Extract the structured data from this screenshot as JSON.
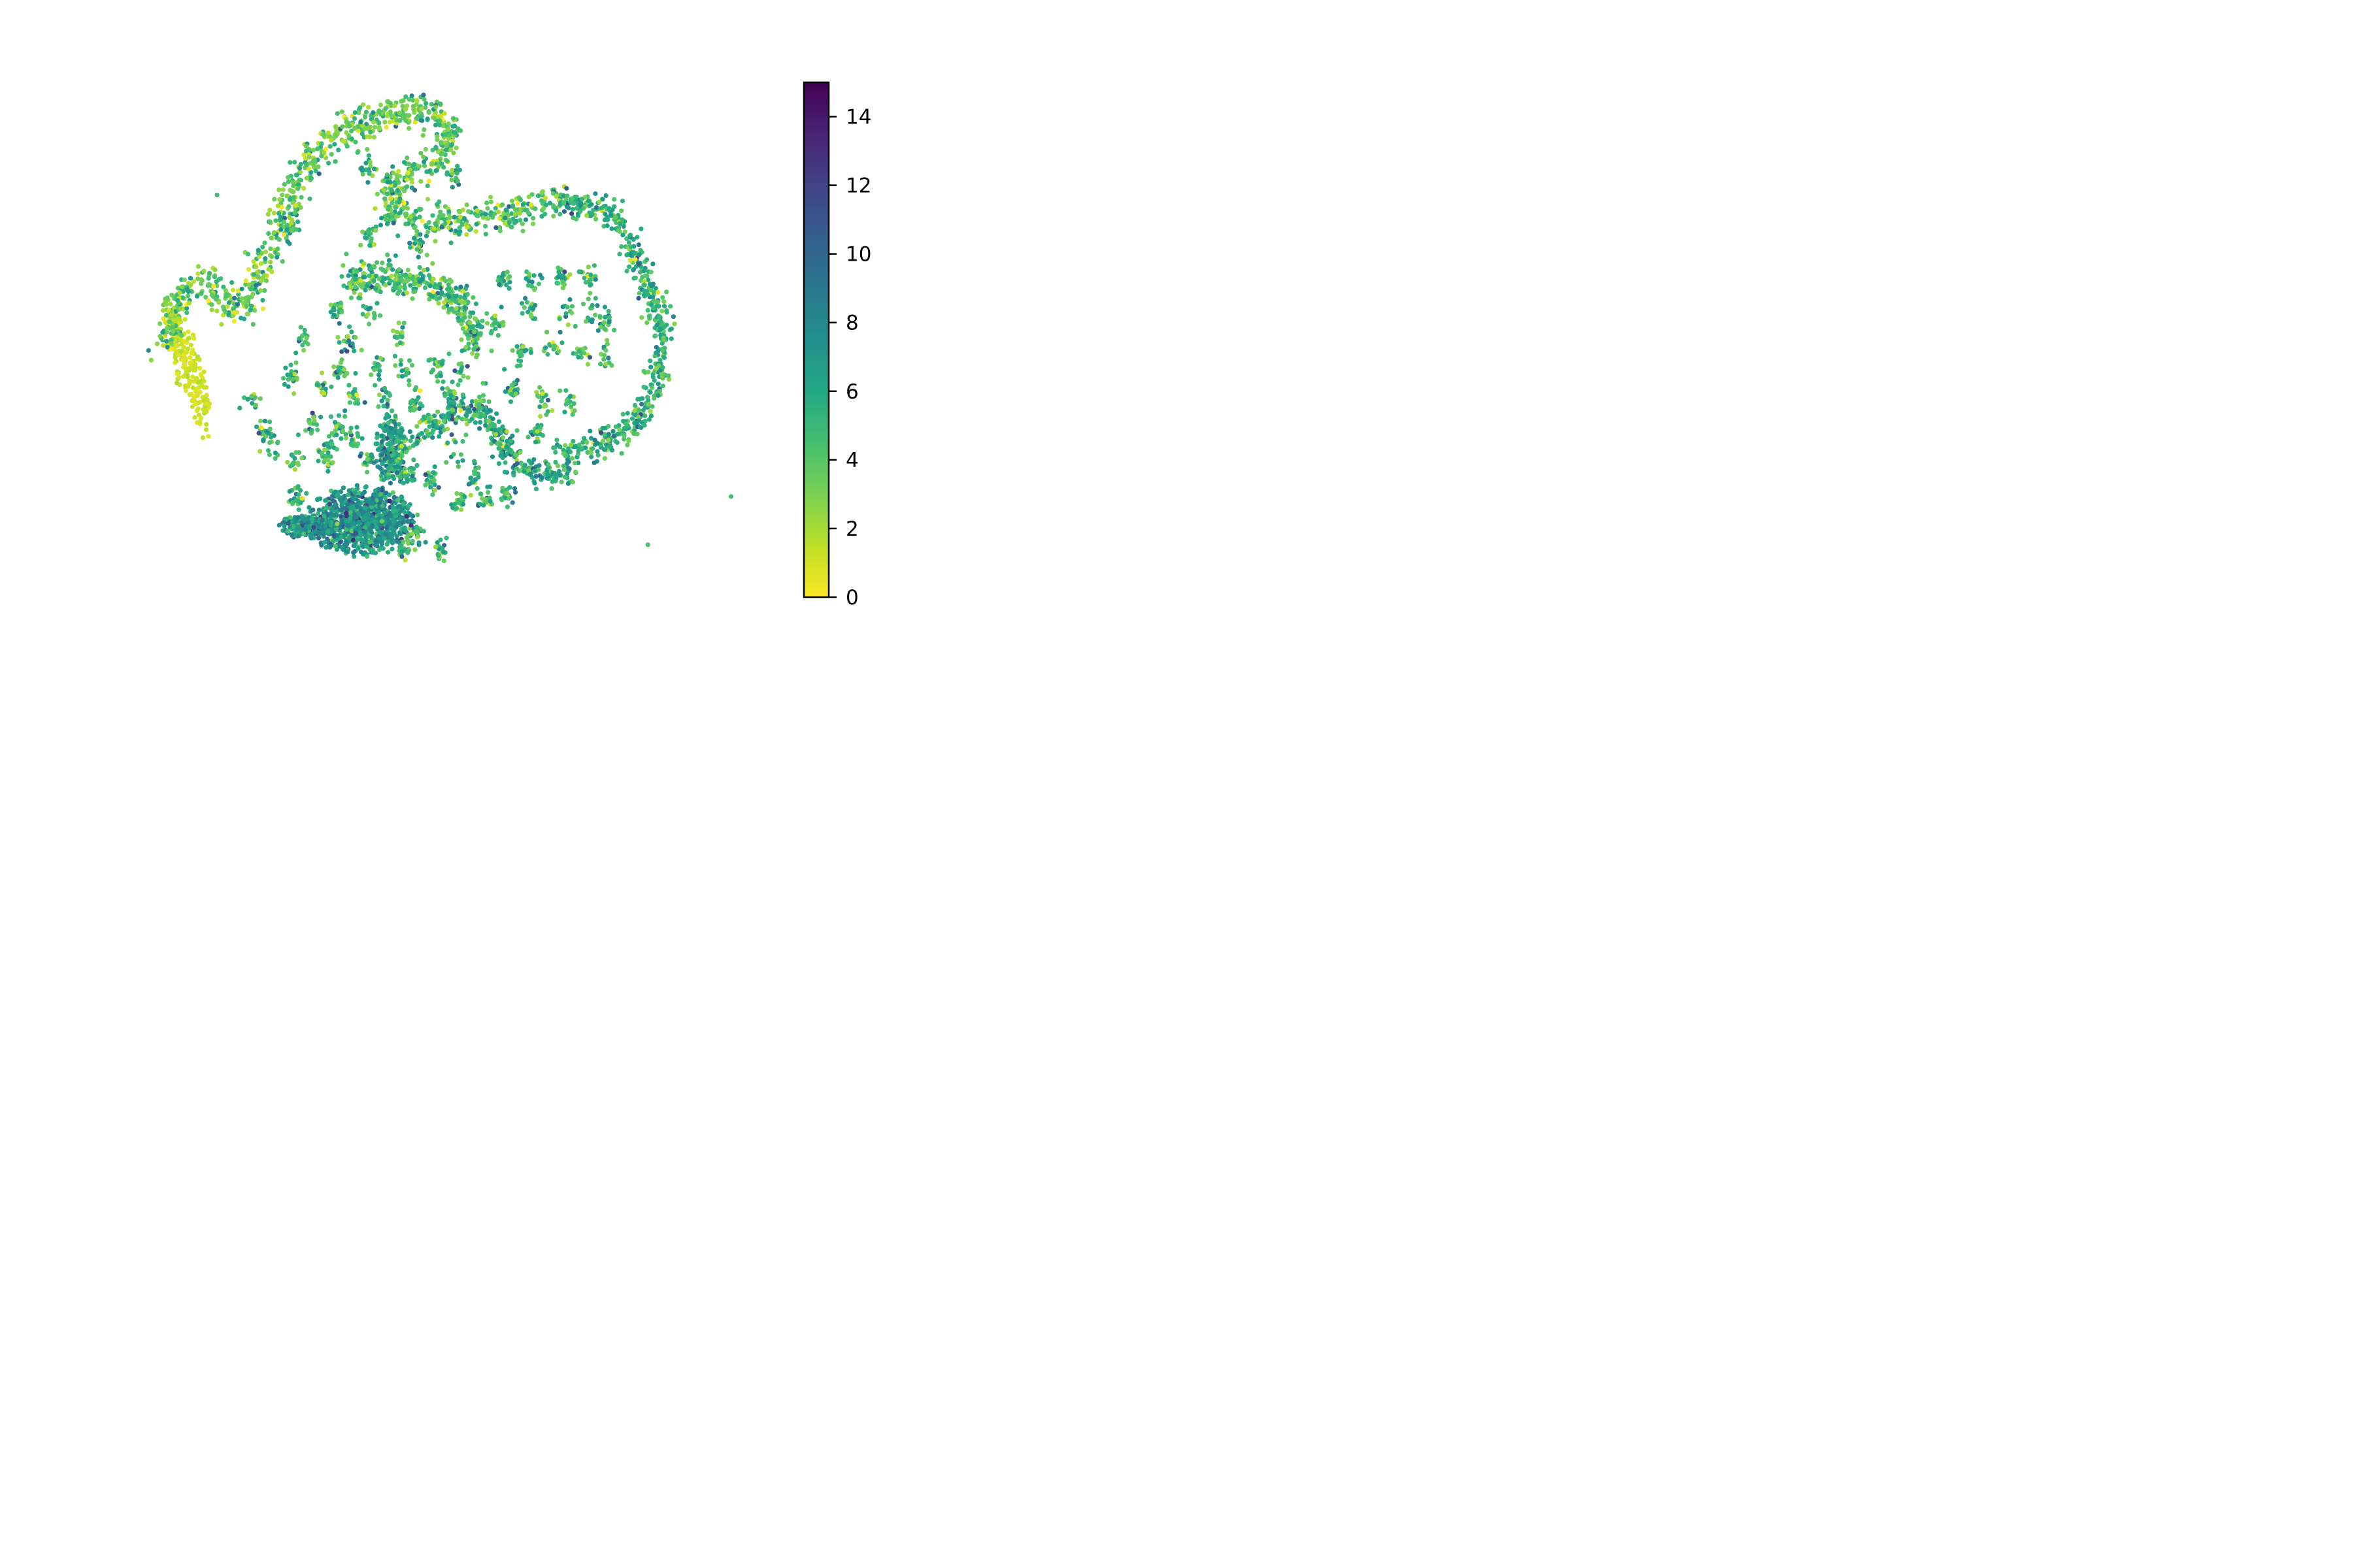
{
  "chart_data": {
    "type": "scatter",
    "title": "",
    "xlabel": "",
    "ylabel": "",
    "axes_visible": false,
    "grid": false,
    "legend": "none",
    "colormap": "viridis_r",
    "colorbar": {
      "min": 0,
      "max": 15,
      "ticks": [
        "0",
        "2",
        "4",
        "6",
        "8",
        "10",
        "12",
        "14"
      ],
      "placement": "right",
      "colors_low_to_high": [
        "#fde725",
        "#7ad151",
        "#22a884",
        "#2a788e",
        "#414487",
        "#440154"
      ]
    },
    "point_value_distribution": "mostly 2-8; left tail region near 0-1; dense lower region near 6-8; sparse highs up to ~11",
    "approx_point_count": 4000,
    "clusters": [
      {
        "name": "left-tail",
        "type": "blob",
        "cx": -14.2,
        "cy": 3.0,
        "rx": 1.0,
        "ry": 4.0,
        "n": 220,
        "v": 1.0
      },
      {
        "name": "left-hook",
        "type": "path",
        "path": [
          [
            -15.5,
            3.6
          ],
          [
            -14.5,
            6.2
          ],
          [
            -12.8,
            6.8
          ],
          [
            -11.2,
            5.3
          ],
          [
            -10.0,
            6.1
          ],
          [
            -8.5,
            9.3
          ],
          [
            -7.0,
            12.2
          ],
          [
            -5.0,
            14.2
          ],
          [
            -2.0,
            15.0
          ],
          [
            0.0,
            15.4
          ],
          [
            1.5,
            15.2
          ]
        ],
        "n": 650,
        "w": 0.6,
        "v": 3.5
      },
      {
        "name": "upper-curl",
        "type": "path",
        "path": [
          [
            1.5,
            15.2
          ],
          [
            2.5,
            14.3
          ],
          [
            1.5,
            12.8
          ],
          [
            -0.5,
            12.2
          ],
          [
            -1.5,
            11.0
          ],
          [
            0.5,
            9.8
          ],
          [
            3.0,
            10.0
          ],
          [
            5.5,
            10.1
          ],
          [
            7.5,
            10.6
          ],
          [
            8.7,
            10.9
          ]
        ],
        "n": 420,
        "w": 0.55,
        "v": 4.0
      },
      {
        "name": "right-arc",
        "type": "path",
        "path": [
          [
            8.7,
            10.9
          ],
          [
            11.5,
            10.5
          ],
          [
            13.0,
            9.8
          ],
          [
            14.0,
            8.0
          ],
          [
            15.0,
            6.3
          ],
          [
            15.6,
            4.0
          ],
          [
            15.2,
            1.5
          ],
          [
            13.7,
            -0.3
          ],
          [
            11.7,
            -1.3
          ],
          [
            9.8,
            -1.5
          ]
        ],
        "n": 520,
        "w": 0.5,
        "v": 5.0
      },
      {
        "name": "inner-arc",
        "type": "path",
        "path": [
          [
            -4.0,
            7.0
          ],
          [
            -2.0,
            7.0
          ],
          [
            0.5,
            6.9
          ],
          [
            2.5,
            6.4
          ],
          [
            3.6,
            5.0
          ],
          [
            4.0,
            3.5
          ]
        ],
        "n": 360,
        "w": 0.55,
        "v": 4.5
      },
      {
        "name": "lower-s-curve",
        "type": "path",
        "path": [
          [
            0.0,
            -1.0
          ],
          [
            2.5,
            0.5
          ],
          [
            4.5,
            0.3
          ],
          [
            5.5,
            -1.0
          ],
          [
            6.5,
            -2.3
          ],
          [
            8.3,
            -2.7
          ],
          [
            10.0,
            -2.6
          ]
        ],
        "n": 300,
        "w": 0.45,
        "v": 5.5
      },
      {
        "name": "bottom-dense",
        "type": "blob",
        "cx": -3.2,
        "cy": -5.0,
        "rx": 3.5,
        "ry": 1.8,
        "n": 900,
        "v": 7.0
      },
      {
        "name": "bottom-wedge",
        "type": "blob",
        "cx": -6.5,
        "cy": -5.3,
        "rx": 2.0,
        "ry": 0.6,
        "n": 250,
        "v": 7.0
      },
      {
        "name": "lower-column",
        "type": "blob",
        "cx": -1.3,
        "cy": -1.5,
        "rx": 1.0,
        "ry": 2.0,
        "n": 220,
        "v": 6.0
      }
    ],
    "islands": [
      [
        -4.7,
        5.5
      ],
      [
        -2.8,
        5.3
      ],
      [
        -0.8,
        4.3
      ],
      [
        -4.0,
        3.9
      ],
      [
        -6.8,
        4.0
      ],
      [
        -4.4,
        2.5
      ],
      [
        -2.2,
        2.4
      ],
      [
        -0.5,
        2.6
      ],
      [
        1.6,
        2.8
      ],
      [
        3.2,
        2.3
      ],
      [
        -7.6,
        2.1
      ],
      [
        -5.6,
        1.6
      ],
      [
        -3.6,
        1.3
      ],
      [
        -1.7,
        1.0
      ],
      [
        0.3,
        1.0
      ],
      [
        2.4,
        1.3
      ],
      [
        4.2,
        0.9
      ],
      [
        6.3,
        1.5
      ],
      [
        8.2,
        1.0
      ],
      [
        9.8,
        0.9
      ],
      [
        6.8,
        3.4
      ],
      [
        8.6,
        3.6
      ],
      [
        10.5,
        3.4
      ],
      [
        12.0,
        3.1
      ],
      [
        5.3,
        4.9
      ],
      [
        7.3,
        5.6
      ],
      [
        9.6,
        5.4
      ],
      [
        11.2,
        5.4
      ],
      [
        12.0,
        4.9
      ],
      [
        5.7,
        6.9
      ],
      [
        7.5,
        7.0
      ],
      [
        9.4,
        7.0
      ],
      [
        10.9,
        7.1
      ],
      [
        -8.8,
        -1.1
      ],
      [
        -7.3,
        -1.9
      ],
      [
        -6.3,
        -0.2
      ],
      [
        -5.4,
        -1.6
      ],
      [
        -4.5,
        -0.3
      ],
      [
        -3.7,
        -0.9
      ],
      [
        -5.3,
        -1.5
      ],
      [
        -2.7,
        -2.0
      ],
      [
        -0.2,
        -2.6
      ],
      [
        1.2,
        -3.0
      ],
      [
        2.8,
        -1.5
      ],
      [
        3.8,
        -2.7
      ],
      [
        5.8,
        -1.0
      ],
      [
        7.8,
        -0.6
      ],
      [
        9.2,
        -1.4
      ],
      [
        -10.0,
        1.0
      ],
      [
        -9.2,
        -0.4
      ],
      [
        3.0,
        -4.1
      ],
      [
        4.6,
        -4.0
      ],
      [
        6.0,
        -3.8
      ],
      [
        -0.5,
        -6.5
      ],
      [
        1.8,
        -6.4
      ],
      [
        0.2,
        -5.6
      ],
      [
        -7.2,
        -3.9
      ],
      [
        -2.8,
        12.5
      ],
      [
        -1.5,
        11.6
      ],
      [
        2.7,
        12.2
      ],
      [
        -2.7,
        9.3
      ],
      [
        -1.4,
        10.2
      ],
      [
        0.3,
        8.7
      ],
      [
        -7.5,
        9.5
      ]
    ],
    "outliers": [
      [
        -12.2,
        11.2
      ],
      [
        19.9,
        -3.8
      ],
      [
        14.7,
        -6.2
      ]
    ],
    "xlim": [
      -18,
      22
    ],
    "ylim": [
      -9,
      17
    ]
  }
}
